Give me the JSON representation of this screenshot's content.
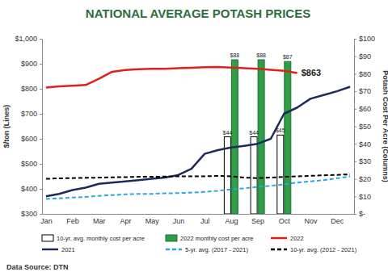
{
  "chart_data": {
    "type": "line",
    "title": "NATIONAL AVERAGE POTASH PRICES",
    "y_label": "$/ton (Lines)",
    "y2_label": "Potash Cost Per Acre (Columns)",
    "source": "Data Source: DTN",
    "categories": [
      "Jan",
      null,
      "Feb",
      null,
      "Mar",
      null,
      "Apr",
      null,
      "May",
      null,
      "Jun",
      null,
      "Jul",
      null,
      "Aug",
      null,
      "Sep",
      null,
      "Oct",
      null,
      "Nov",
      null,
      "Dec",
      null
    ],
    "ylim": [
      300,
      1000
    ],
    "yticks": [
      {
        "value": 300,
        "label": "$300"
      },
      {
        "value": 400,
        "label": "$400"
      },
      {
        "value": 500,
        "label": "$500"
      },
      {
        "value": 600,
        "label": "$600"
      },
      {
        "value": 700,
        "label": "$700"
      },
      {
        "value": 800,
        "label": "$800"
      },
      {
        "value": 900,
        "label": "$900"
      },
      {
        "value": 1000,
        "label": "$1,000"
      }
    ],
    "y2lim": [
      0,
      100
    ],
    "y2ticks": [
      {
        "value": 0,
        "label": "$-"
      },
      {
        "value": 10,
        "label": "$10"
      },
      {
        "value": 20,
        "label": "$20"
      },
      {
        "value": 30,
        "label": "$30"
      },
      {
        "value": 40,
        "label": "$40"
      },
      {
        "value": 50,
        "label": "$50"
      },
      {
        "value": 60,
        "label": "$60"
      },
      {
        "value": 70,
        "label": "$70"
      },
      {
        "value": 80,
        "label": "$80"
      },
      {
        "value": 90,
        "label": "$90"
      },
      {
        "value": 100,
        "label": "$100"
      }
    ],
    "grid": false,
    "legend": "bottom",
    "data_labels": true,
    "series": [
      {
        "name": "10-yr. avg. monthly cost per acre",
        "type": "bar",
        "axis": "y2",
        "color": "#ffffff",
        "values": [
          null,
          null,
          null,
          null,
          null,
          null,
          null,
          null,
          null,
          null,
          null,
          null,
          null,
          null,
          44,
          null,
          44,
          null,
          45,
          null,
          null,
          null,
          null,
          null
        ],
        "value_labels": [
          null,
          null,
          null,
          null,
          null,
          null,
          null,
          null,
          null,
          null,
          null,
          null,
          null,
          null,
          "$44",
          null,
          "$44",
          null,
          "$45",
          null,
          null,
          null,
          null,
          null
        ]
      },
      {
        "name": "2022 monthly cost per acre",
        "type": "bar",
        "axis": "y2",
        "color": "#2e9e48",
        "values": [
          null,
          null,
          null,
          null,
          null,
          null,
          null,
          null,
          null,
          null,
          null,
          null,
          null,
          null,
          88,
          null,
          88,
          null,
          87,
          null,
          null,
          null,
          null,
          null
        ],
        "value_labels": [
          null,
          null,
          null,
          null,
          null,
          null,
          null,
          null,
          null,
          null,
          null,
          null,
          null,
          null,
          "$88",
          null,
          "$88",
          null,
          "$87",
          null,
          null,
          null,
          null,
          null
        ]
      },
      {
        "name": "2022",
        "type": "line",
        "color": "#e0201b",
        "line_style": "solid",
        "values": [
          805,
          810,
          812,
          815,
          840,
          868,
          875,
          878,
          880,
          880,
          882,
          884,
          886,
          887,
          885,
          882,
          880,
          876,
          872,
          863,
          null,
          null,
          null,
          null
        ],
        "value_labels": [
          null,
          null,
          null,
          null,
          null,
          null,
          null,
          null,
          null,
          null,
          null,
          null,
          null,
          null,
          null,
          null,
          null,
          null,
          null,
          "$863",
          null,
          null,
          null,
          null
        ]
      },
      {
        "name": "2021",
        "type": "line",
        "color": "#1f2a5c",
        "line_style": "solid",
        "values": [
          370,
          380,
          395,
          405,
          420,
          425,
          430,
          435,
          440,
          445,
          455,
          480,
          540,
          555,
          565,
          572,
          580,
          600,
          700,
          725,
          760,
          775,
          790,
          808
        ]
      },
      {
        "name": "5-yr. avg. (2017 - 2021)",
        "type": "line",
        "color": "#29a8e0",
        "line_style": "dashed",
        "values": [
          360,
          362,
          365,
          368,
          372,
          375,
          378,
          380,
          380,
          382,
          383,
          385,
          388,
          392,
          398,
          402,
          408,
          412,
          418,
          425,
          430,
          435,
          442,
          450
        ]
      },
      {
        "name": "10-yr. avg. (2012 - 2021)",
        "type": "line",
        "color": "#000000",
        "line_style": "dashed",
        "values": [
          440,
          442,
          443,
          444,
          445,
          446,
          447,
          448,
          448,
          449,
          450,
          450,
          450,
          452,
          450,
          445,
          443,
          445,
          448,
          450,
          452,
          454,
          456,
          458
        ]
      }
    ]
  }
}
